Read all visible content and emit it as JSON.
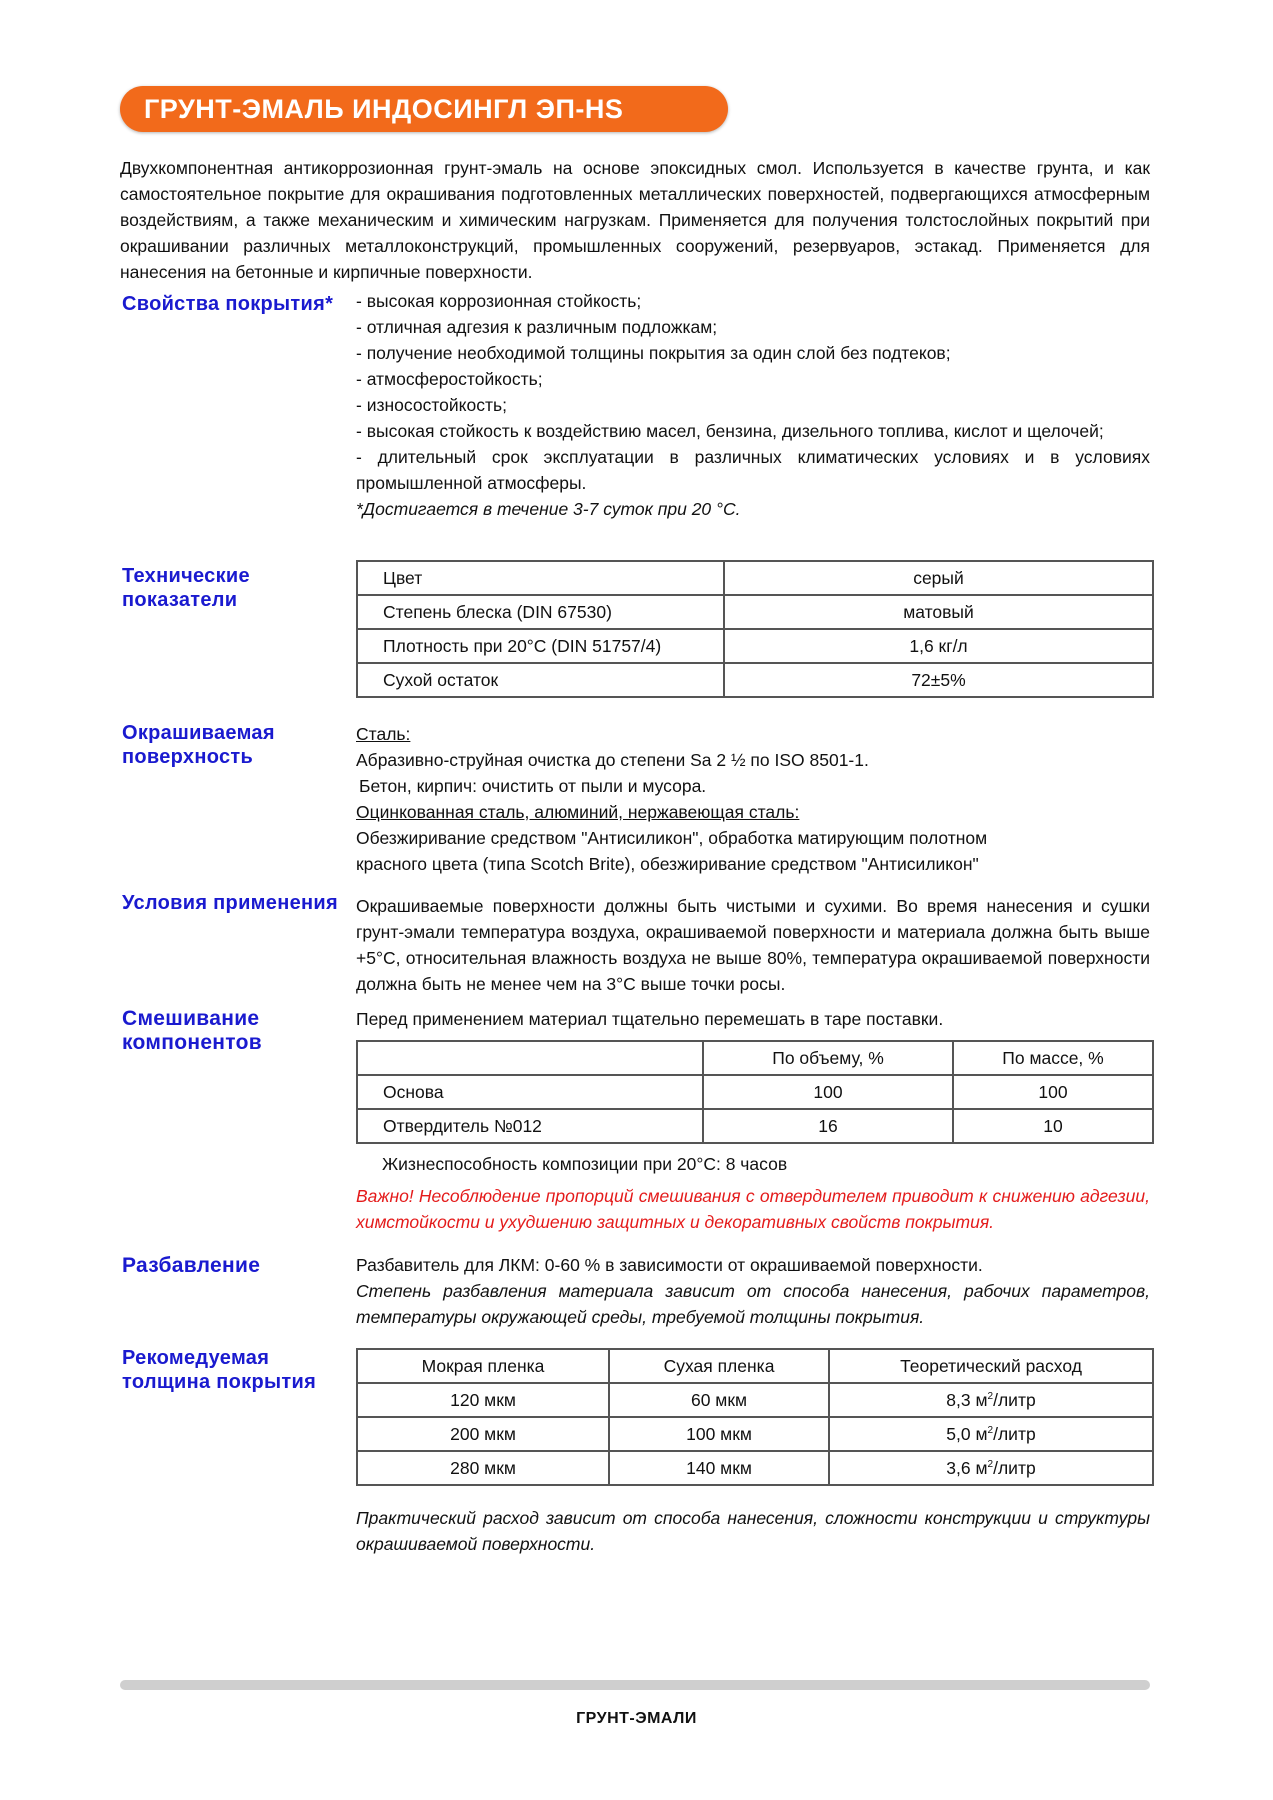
{
  "title": "ГРУНТ-ЭМАЛЬ ИНДОСИНГЛ ЭП-HS",
  "intro": "Двухкомпонентная антикоррозионная грунт-эмаль на основе эпоксидных смол. Используется в качестве грунта, и как самостоятельное покрытие для окрашивания подготовленных металлических поверхностей, подвергающихся атмосферным воздействиям, а также механическим и химическим нагрузкам. Применяется для получения толстослойных покрытий при окрашивании различных металлоконструкций, промышленных сооружений, резервуаров, эстакад. Применяется для нанесения на бетонные и кирпичные поверхности.",
  "properties": {
    "label": "Свойства покрытия*",
    "items": [
      "- высокая коррозионная стойкость;",
      "- отличная адгезия к различным подложкам;",
      "- получение необходимой толщины покрытия за один слой без подтеков;",
      "- атмосферостойкость;",
      "- износостойкость;",
      "- высокая стойкость к воздействию масел, бензина, дизельного топлива, кислот и щелочей;",
      "- длительный срок эксплуатации в различных климатических условиях и в условиях промышленной атмосферы."
    ],
    "note": "*Достигается в течение 3-7 суток при 20 °С."
  },
  "technical": {
    "label": "Технические показатели",
    "rows": [
      [
        "Цвет",
        "серый"
      ],
      [
        "Степень блеска (DIN 67530)",
        "матовый"
      ],
      [
        "Плотность при 20°С (DIN 51757/4)",
        "1,6 кг/л"
      ],
      [
        "Сухой остаток",
        "72±5%"
      ]
    ]
  },
  "surface": {
    "label": "Окрашиваемая поверхность",
    "steel_heading": "Сталь:",
    "steel_text": "Абразивно-струйная очистка до степени Sa 2 ½ по ISO 8501-1.",
    "concrete_text": "Бетон,  кирпич: очистить от пыли и мусора.",
    "galv_heading": "Оцинкованная сталь, алюминий, нержавеющая сталь:",
    "galv_text1": "Обезжиривание средством \"Антисиликон\",  обработка матирующим полотном",
    "galv_text2": "красного цвета (типа Scotch Brite),  обезжиривание средством \"Антисиликон\""
  },
  "conditions": {
    "label": "Условия применения",
    "text": "Окрашиваемые поверхности должны быть чистыми и сухими. Во время нанесения и сушки грунт-эмали температура воздуха, окрашиваемой поверхности и материала должна быть выше +5°С, относительная влажность воздуха не выше 80%, температура окрашиваемой поверхности должна быть не менее чем на 3°С выше точки росы."
  },
  "mixing": {
    "label": "Смешивание компонентов",
    "intro": "Перед применением материал тщательно перемешать в таре поставки.",
    "headers": [
      "",
      "По объему, %",
      "По массе, %"
    ],
    "rows": [
      [
        "Основа",
        "100",
        "100"
      ],
      [
        "Отвердитель №012",
        "16",
        "10"
      ]
    ],
    "potlife": "Жизнеспособность композиции при 20°С: 8 часов",
    "warning": "Важно! Несоблюдение пропорций смешивания с отвердителем приводит к снижению адгезии, химстойкости и ухудшению защитных и декоративных свойств покрытия."
  },
  "thinning": {
    "label": "Разбавление",
    "text": "Разбавитель для ЛКМ: 0-60 % в зависимости от окрашиваемой поверхности.",
    "note": "Степень разбавления материала зависит от способа нанесения, рабочих параметров, температуры окружающей среды, требуемой толщины покрытия."
  },
  "thickness": {
    "label": "Рекомедуемая толщина покрытия",
    "headers": [
      "Мокрая пленка",
      "Сухая пленка",
      "Теоретический расход"
    ],
    "rows": [
      [
        "120 мкм",
        "60 мкм",
        "8,3 м",
        "/литр"
      ],
      [
        "200 мкм",
        "100 мкм",
        "5,0 м",
        "/литр"
      ],
      [
        "280 мкм",
        "140 мкм",
        "3,6 м",
        "/литр"
      ]
    ],
    "sup": "2",
    "note": "Практический расход зависит от способа нанесения, сложности конструкции и структуры окрашиваемой поверхности."
  },
  "footer": "ГРУНТ-ЭМАЛИ",
  "colors": {
    "accent": "#f26a1b",
    "label": "#1a1acf",
    "warning": "#e41b1b"
  }
}
